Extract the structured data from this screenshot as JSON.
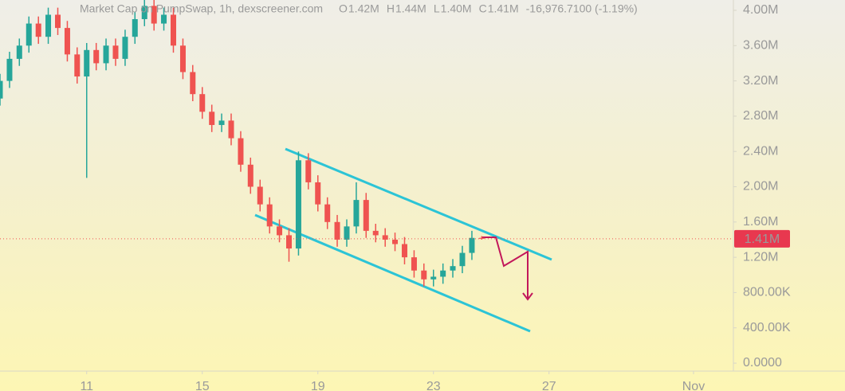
{
  "chart_data": {
    "type": "candlestick",
    "title": "Market Cap on PumpSwap, 1h, dexscreener.com",
    "ohlc_legend": [
      {
        "key": "O",
        "value": "1.42M"
      },
      {
        "key": "H",
        "value": "1.44M"
      },
      {
        "key": "L",
        "value": "1.40M"
      },
      {
        "key": "C",
        "value": "1.41M"
      }
    ],
    "change": "-16,976.7100 (-1.19%)",
    "last_price": {
      "value": 1410000,
      "label": "1.41M"
    },
    "up_color": "#26a69a",
    "down_color": "#ef5350",
    "x": [
      8,
      8.33,
      8.67,
      9,
      9.33,
      9.67,
      10,
      10.33,
      10.67,
      11,
      11.33,
      11.67,
      12,
      12.33,
      12.67,
      13,
      13.33,
      13.67,
      14,
      14.33,
      14.67,
      15,
      15.33,
      15.67,
      16,
      16.33,
      16.67,
      17,
      17.33,
      17.67,
      18,
      18.33,
      18.67,
      19,
      19.33,
      19.67,
      20,
      20.33,
      20.67,
      21,
      21.33,
      21.67,
      22,
      22.33,
      22.67,
      23,
      23.33,
      23.67,
      24,
      24.33,
      24.67
    ],
    "open": [
      3000000,
      3200000,
      3450000,
      3600000,
      3850000,
      3700000,
      3950000,
      3800000,
      3500000,
      3250000,
      3550000,
      3400000,
      3600000,
      3450000,
      3700000,
      3900000,
      4050000,
      3850000,
      3950000,
      3600000,
      3300000,
      3050000,
      2850000,
      2700000,
      2750000,
      2550000,
      2250000,
      2000000,
      1800000,
      1550000,
      1450000,
      1300000,
      2300000,
      2050000,
      1800000,
      1600000,
      1400000,
      1550000,
      1850000,
      1500000,
      1450000,
      1400000,
      1350000,
      1200000,
      1050000,
      950000,
      980000,
      1050000,
      1100000,
      1250000,
      1420000
    ],
    "high": [
      3280000,
      3530000,
      3680000,
      3930000,
      3930000,
      4030000,
      4030000,
      3880000,
      3580000,
      3630000,
      3630000,
      3680000,
      3680000,
      3780000,
      3980000,
      4130000,
      4130000,
      4030000,
      4030000,
      3680000,
      3380000,
      3130000,
      2930000,
      2830000,
      2830000,
      2630000,
      2330000,
      2080000,
      1880000,
      1630000,
      1530000,
      2400000,
      2380000,
      2130000,
      1880000,
      1680000,
      1630000,
      2050000,
      1930000,
      1580000,
      1530000,
      1480000,
      1430000,
      1280000,
      1130000,
      1060000,
      1130000,
      1180000,
      1330000,
      1500000,
      1440000
    ],
    "low": [
      2920000,
      3120000,
      3370000,
      3520000,
      3620000,
      3620000,
      3720000,
      3420000,
      3170000,
      2100000,
      3320000,
      3320000,
      3370000,
      3370000,
      3620000,
      3820000,
      3770000,
      3770000,
      3520000,
      3220000,
      2970000,
      2770000,
      2620000,
      2620000,
      2470000,
      2170000,
      1920000,
      1720000,
      1470000,
      1370000,
      1150000,
      1220000,
      1970000,
      1720000,
      1520000,
      1320000,
      1320000,
      1470000,
      1420000,
      1370000,
      1320000,
      1270000,
      1120000,
      970000,
      870000,
      870000,
      900000,
      970000,
      1020000,
      1170000,
      1400000
    ],
    "close": [
      3200000,
      3450000,
      3600000,
      3850000,
      3700000,
      3950000,
      3800000,
      3500000,
      3250000,
      3550000,
      3400000,
      3600000,
      3450000,
      3700000,
      3900000,
      4050000,
      3850000,
      3950000,
      3600000,
      3300000,
      3050000,
      2850000,
      2700000,
      2750000,
      2550000,
      2250000,
      2000000,
      1800000,
      1550000,
      1450000,
      1300000,
      2300000,
      2050000,
      1800000,
      1600000,
      1400000,
      1550000,
      1850000,
      1500000,
      1450000,
      1400000,
      1350000,
      1200000,
      1050000,
      950000,
      980000,
      1050000,
      1100000,
      1250000,
      1420000,
      1410000
    ],
    "xlim": [
      8,
      33.38
    ],
    "xticks": [
      11,
      15,
      19,
      23,
      27,
      {
        "value": 32,
        "label": "Nov"
      }
    ],
    "ylim": [
      -90000,
      4117000
    ],
    "yticks": [
      {
        "value": 0,
        "label": "0.0000"
      },
      {
        "value": 400000,
        "label": "400.00K"
      },
      {
        "value": 800000,
        "label": "800.00K"
      },
      {
        "value": 1200000,
        "label": "1.20M"
      },
      {
        "value": 1600000,
        "label": "1.60M"
      },
      {
        "value": 2000000,
        "label": "2.00M"
      },
      {
        "value": 2400000,
        "label": "2.40M"
      },
      {
        "value": 2800000,
        "label": "2.80M"
      },
      {
        "value": 3200000,
        "label": "3.20M"
      },
      {
        "value": 3600000,
        "label": "3.60M"
      },
      {
        "value": 4000000,
        "label": "4.00M"
      }
    ]
  }
}
